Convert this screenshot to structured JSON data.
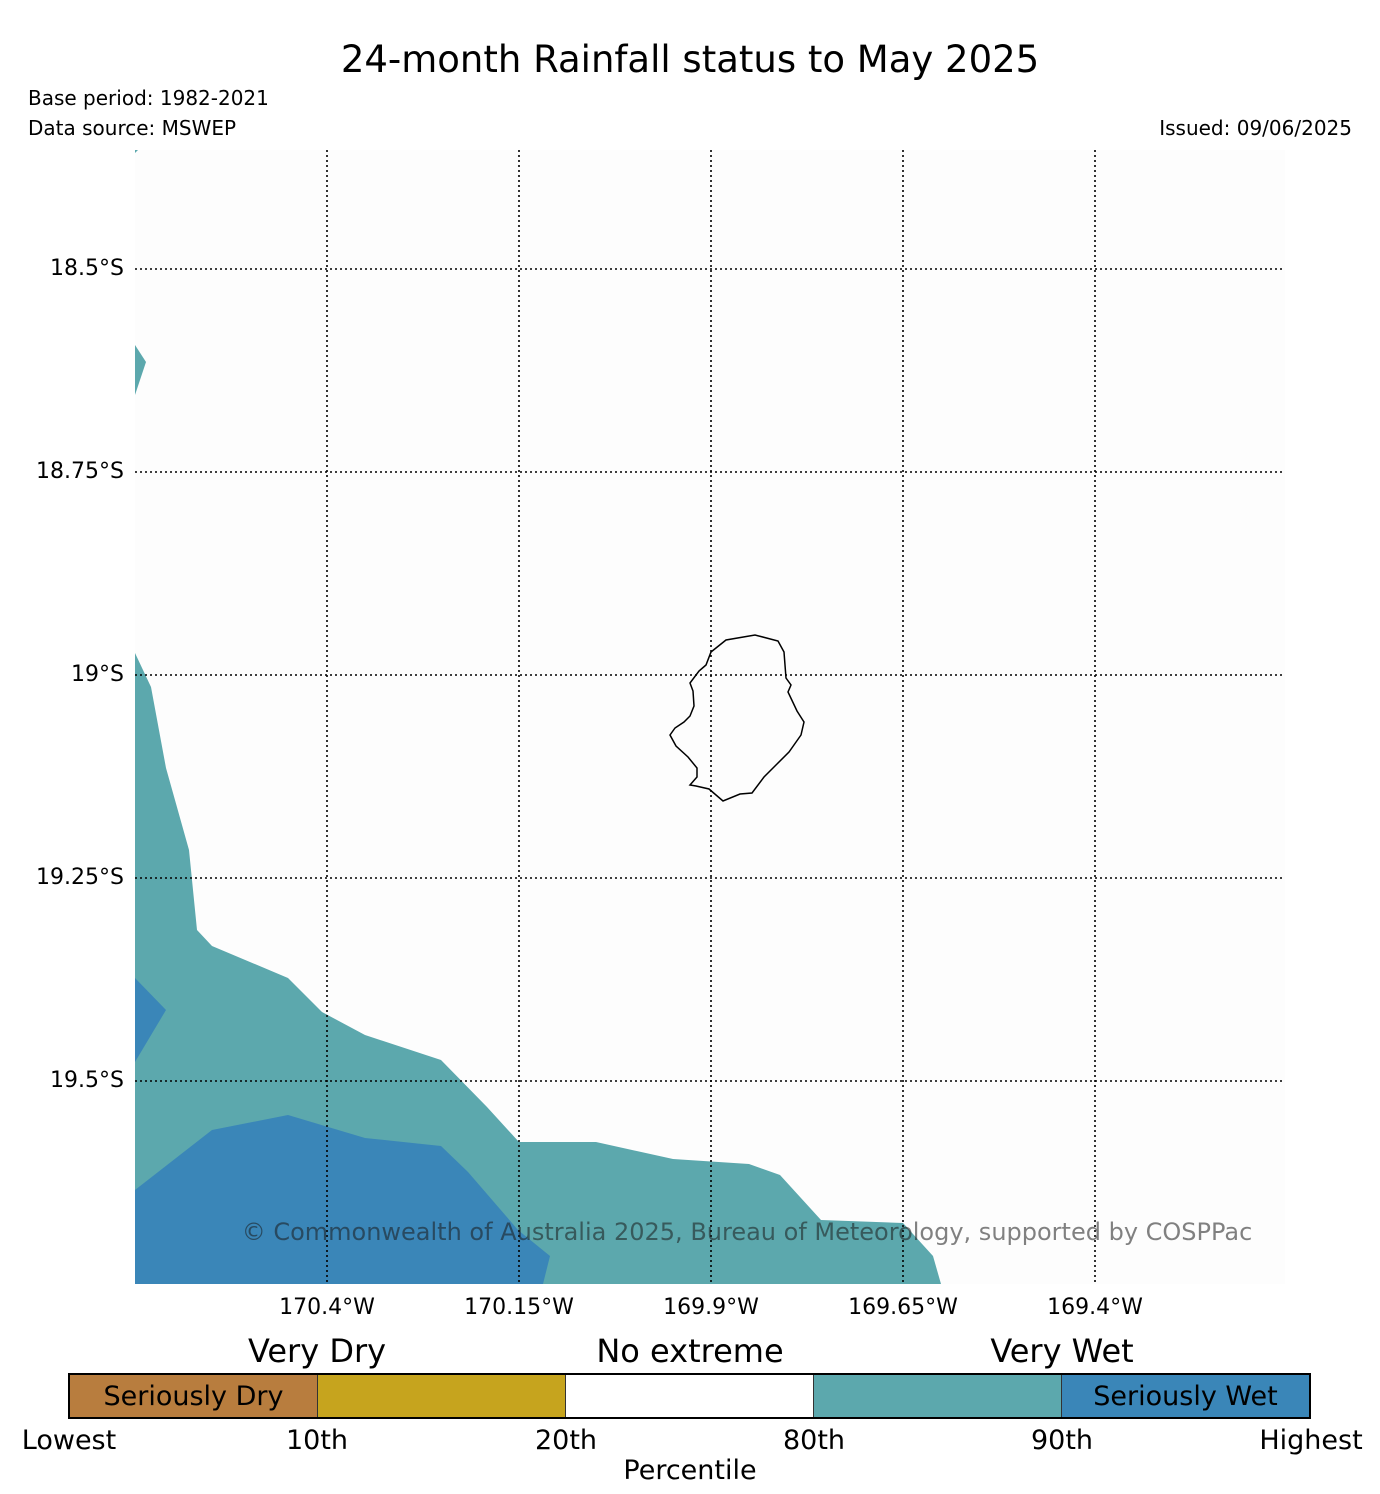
{
  "title": "24-month Rainfall status to May 2025",
  "base_period": "Base period: 1982-2021",
  "data_source": "Data source: MSWEP",
  "issued": "Issued: 09/06/2025",
  "copyright": "© Commonwealth of Australia 2025, Bureau of Meteorology, supported by COSPPac",
  "lat_labels": [
    "18.5°S",
    "18.75°S",
    "19°S",
    "19.25°S",
    "19.5°S"
  ],
  "lon_labels": [
    "170.4°W",
    "170.15°W",
    "169.9°W",
    "169.65°W",
    "169.4°W"
  ],
  "legend": {
    "groups": [
      "Very Dry",
      "No extreme",
      "Very Wet"
    ],
    "categories": [
      {
        "label": "Seriously Dry",
        "color": "#b87d3e"
      },
      {
        "label": "",
        "color": "#c6a41e"
      },
      {
        "label": "",
        "color": "#ffffff"
      },
      {
        "label": "",
        "color": "#5ca8ad"
      },
      {
        "label": "Seriously Wet",
        "color": "#3a86b8"
      }
    ],
    "ticks": [
      "Lowest",
      "10th",
      "20th",
      "80th",
      "90th",
      "Highest"
    ],
    "axis_label": "Percentile"
  },
  "colors": {
    "very_wet": "#5ca8ad",
    "seriously_wet": "#3a86b8",
    "coastline": "#000000",
    "gridline": "#000000",
    "map_background": "#fdfdfd"
  }
}
